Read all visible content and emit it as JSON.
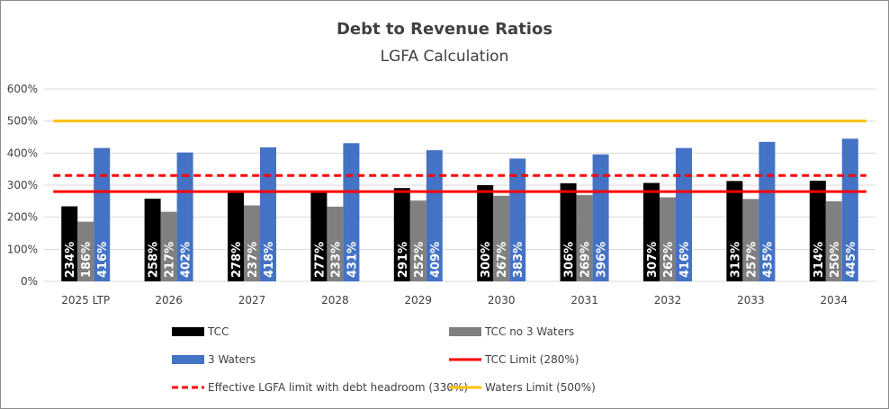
{
  "chart_data": {
    "type": "bar",
    "title": "Debt to Revenue Ratios",
    "subtitle": "LGFA Calculation",
    "categories": [
      "2025 LTP",
      "2026",
      "2027",
      "2028",
      "2029",
      "2030",
      "2031",
      "2032",
      "2033",
      "2034"
    ],
    "ylim": [
      0,
      600
    ],
    "yticks": [
      0,
      100,
      200,
      300,
      400,
      500,
      600
    ],
    "ytick_labels": [
      "0%",
      "100%",
      "200%",
      "300%",
      "400%",
      "500%",
      "600%"
    ],
    "grid": true,
    "legend_position": "bottom",
    "series": [
      {
        "name": "TCC",
        "color": "#000000",
        "values": [
          234,
          258,
          278,
          277,
          291,
          300,
          306,
          307,
          313,
          314
        ],
        "labels": [
          "234%",
          "258%",
          "278%",
          "277%",
          "291%",
          "300%",
          "306%",
          "307%",
          "313%",
          "314%"
        ]
      },
      {
        "name": "TCC no 3 Waters",
        "color": "#808080",
        "values": [
          186,
          217,
          237,
          233,
          252,
          267,
          269,
          262,
          257,
          250
        ],
        "labels": [
          "186%",
          "217%",
          "237%",
          "233%",
          "252%",
          "267%",
          "269%",
          "262%",
          "257%",
          "250%"
        ]
      },
      {
        "name": "3 Waters",
        "color": "#4472c4",
        "values": [
          416,
          402,
          418,
          431,
          409,
          383,
          396,
          416,
          435,
          445
        ],
        "labels": [
          "416%",
          "402%",
          "418%",
          "431%",
          "409%",
          "383%",
          "396%",
          "416%",
          "435%",
          "445%"
        ]
      }
    ],
    "limits": [
      {
        "name": "TCC Limit (280%)",
        "value": 280,
        "color": "#ff0000",
        "style": "solid"
      },
      {
        "name": "Effective LGFA limit with debt headroom (330%)",
        "value": 330,
        "color": "#ff0000",
        "style": "dashed"
      },
      {
        "name": "Waters Limit (500%)",
        "value": 500,
        "color": "#ffc000",
        "style": "solid"
      }
    ],
    "legend_order": [
      "TCC",
      "TCC no 3 Waters",
      "3 Waters",
      "TCC Limit (280%)",
      "Effective LGFA limit with debt headroom (330%)",
      "Waters Limit (500%)"
    ]
  }
}
